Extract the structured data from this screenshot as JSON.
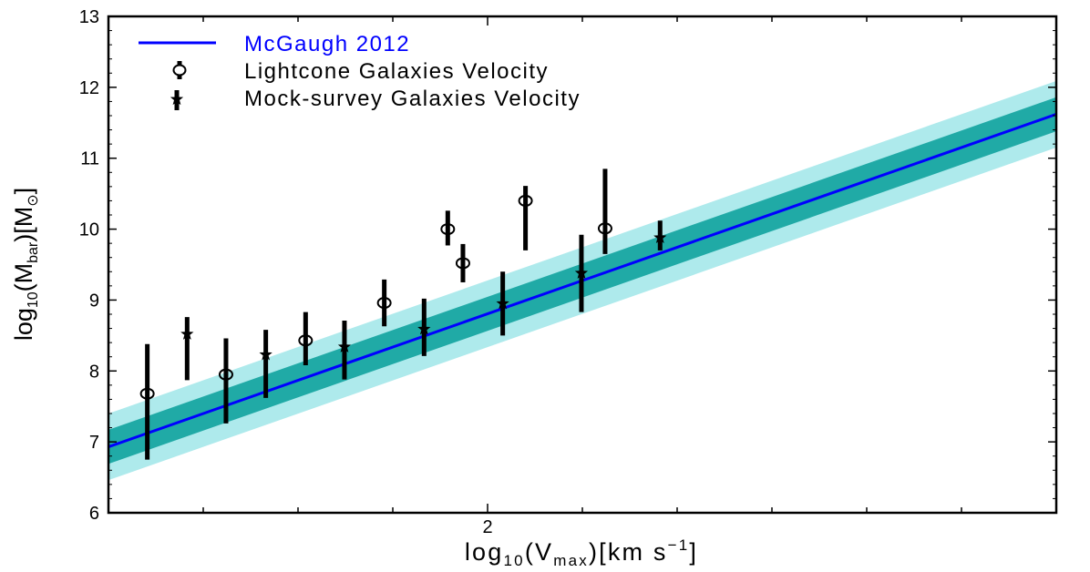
{
  "chart_data": {
    "type": "scatter",
    "title": "",
    "xlabel": {
      "base": "log",
      "sub": "10",
      "open": "(V",
      "sub2": "max",
      "close": ")[km s",
      "sup": "−1",
      "end": "]"
    },
    "ylabel": {
      "base": "log",
      "sub": "10",
      "open": "(M",
      "sub2": "bar",
      "mid": ")[M",
      "sub3": "⊙",
      "end": "]"
    },
    "xlim": [
      1.6,
      2.6
    ],
    "ylim": [
      6,
      13
    ],
    "x_ticks_labeled": [
      {
        "value": 2,
        "label": "2"
      }
    ],
    "y_ticks": [
      6,
      7,
      8,
      9,
      10,
      11,
      12,
      13
    ],
    "grid": false,
    "legend_position": "top-left",
    "model": {
      "name": "McGaugh 2012",
      "color": "#0000ff",
      "band_inner_color": "#20aaa6",
      "band_outer_color": "#aeeaec",
      "points": [
        [
          1.6,
          6.93
        ],
        [
          2.6,
          11.62
        ]
      ],
      "inner_halfwidth": 0.24,
      "outer_halfwidth": 0.47
    },
    "series": [
      {
        "name": "Lightcone Galaxies Velocity",
        "marker": "circle",
        "points": [
          {
            "x": 1.641,
            "y": 7.68,
            "lo": 6.75,
            "hi": 8.38
          },
          {
            "x": 1.724,
            "y": 7.95,
            "lo": 7.26,
            "hi": 8.46
          },
          {
            "x": 1.808,
            "y": 8.43,
            "lo": 8.08,
            "hi": 8.83
          },
          {
            "x": 1.891,
            "y": 8.96,
            "lo": 8.63,
            "hi": 9.29
          },
          {
            "x": 1.974,
            "y": 9.52,
            "lo": 9.25,
            "hi": 9.79
          },
          {
            "x": 1.958,
            "y": 10.0,
            "lo": 9.77,
            "hi": 10.26
          },
          {
            "x": 2.04,
            "y": 10.4,
            "lo": 9.7,
            "hi": 10.61
          },
          {
            "x": 2.124,
            "y": 10.01,
            "lo": 9.65,
            "hi": 10.85
          }
        ]
      },
      {
        "name": "Mock-survey Galaxies Velocity",
        "marker": "star",
        "points": [
          {
            "x": 1.683,
            "y": 8.52,
            "lo": 7.87,
            "hi": 8.76
          },
          {
            "x": 1.766,
            "y": 8.23,
            "lo": 7.62,
            "hi": 8.58
          },
          {
            "x": 1.849,
            "y": 8.34,
            "lo": 7.88,
            "hi": 8.71
          },
          {
            "x": 1.933,
            "y": 8.59,
            "lo": 8.21,
            "hi": 9.02
          },
          {
            "x": 2.016,
            "y": 8.95,
            "lo": 8.5,
            "hi": 9.4
          },
          {
            "x": 2.099,
            "y": 9.38,
            "lo": 8.83,
            "hi": 9.92
          },
          {
            "x": 2.182,
            "y": 9.88,
            "lo": 9.7,
            "hi": 10.12
          }
        ]
      }
    ]
  }
}
